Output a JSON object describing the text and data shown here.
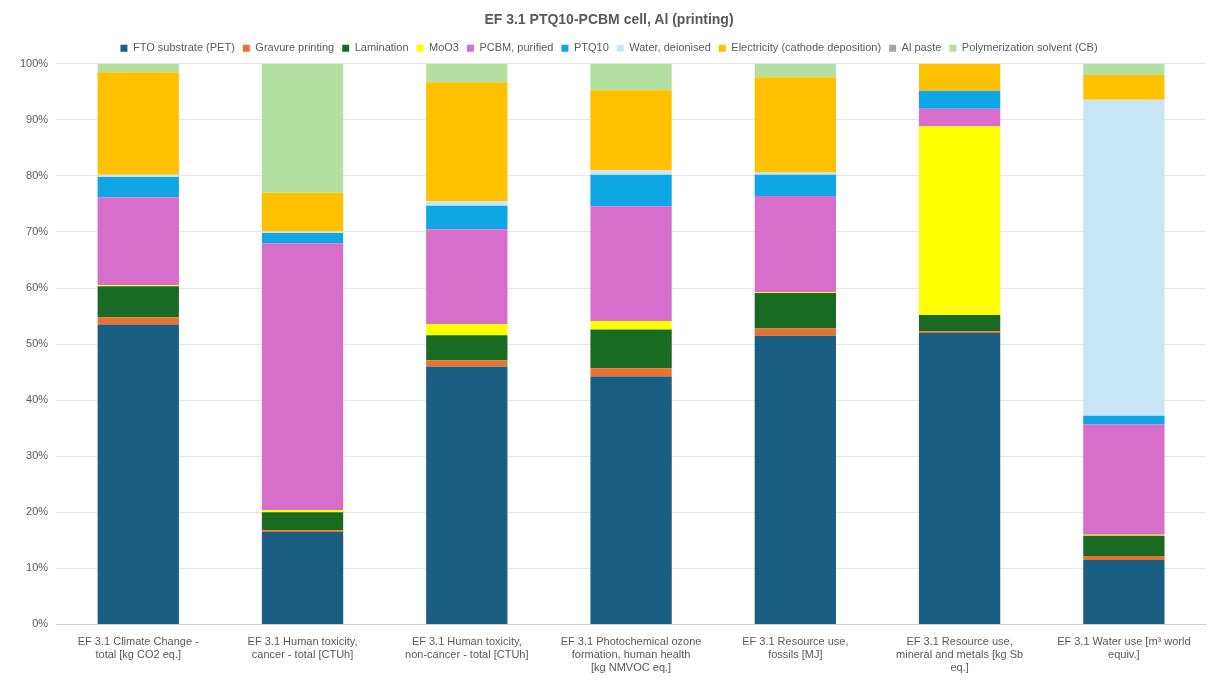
{
  "chart_data": {
    "type": "bar",
    "stacked": true,
    "title": "EF 3.1 PTQ10-PCBM cell, Al (printing)",
    "categories": [
      "EF 3.1 Climate Change - total [kg CO2 eq.]",
      "EF 3.1 Human toxicity, cancer - total [CTUh]",
      "EF 3.1 Human toxicity, non-cancer - total [CTUh]",
      "EF 3.1 Photochemical ozone formation, human health [kg NMVOC eq.]",
      "EF 3.1 Resource use, fossils [MJ]",
      "EF 3.1 Resource use, mineral and metals [kg Sb eq.]",
      "EF 3.1 Water use [m³ world equiv.]"
    ],
    "series": [
      {
        "name": "FTO substrate (PET)",
        "color": "#1a5e83",
        "values": [
          53.5,
          16.5,
          46.0,
          44.2,
          51.5,
          52.0,
          11.5
        ]
      },
      {
        "name": "Gravure printing",
        "color": "#e97132",
        "values": [
          1.3,
          0.3,
          1.1,
          1.5,
          1.3,
          0.3,
          0.7
        ]
      },
      {
        "name": "Lamination",
        "color": "#196b24",
        "values": [
          5.5,
          3.2,
          4.5,
          6.9,
          6.3,
          2.9,
          3.6
        ]
      },
      {
        "name": "MoO3",
        "color": "#ffff00",
        "values": [
          0.2,
          0.4,
          2.0,
          1.5,
          0.2,
          33.6,
          0.2
        ]
      },
      {
        "name": "PCBM, purified",
        "color": "#d86ecc",
        "values": [
          15.7,
          47.6,
          16.9,
          20.5,
          17.1,
          3.2,
          19.7
        ]
      },
      {
        "name": "PTQ10",
        "color": "#0fa6e6",
        "values": [
          3.6,
          1.8,
          4.2,
          5.6,
          3.8,
          3.2,
          1.5
        ]
      },
      {
        "name": "Water, deionised",
        "color": "#c8e5f5",
        "values": [
          0.4,
          0.3,
          0.8,
          0.8,
          0.4,
          null,
          56.4
        ]
      },
      {
        "name": "Electricity (cathode deposition)",
        "color": "#ffc000",
        "values": [
          18.3,
          6.9,
          21.2,
          14.3,
          17.0,
          4.8,
          4.4
        ]
      },
      {
        "name": "Al paste",
        "color": "#a6a6a6",
        "values": [
          null,
          0,
          0,
          0,
          0,
          null,
          0
        ]
      },
      {
        "name": "Polymerization solvent (CB)",
        "color": "#b3e0a0",
        "values": [
          1.5,
          23.0,
          3.3,
          4.7,
          2.4,
          0,
          2.0
        ]
      }
    ],
    "ylim": [
      0,
      100
    ],
    "yticks": [
      {
        "value": 0,
        "label": "0%"
      },
      {
        "value": 10,
        "label": "10%"
      },
      {
        "value": 20,
        "label": "20%"
      },
      {
        "value": 30,
        "label": "30%"
      },
      {
        "value": 40,
        "label": "40%"
      },
      {
        "value": 50,
        "label": "50%"
      },
      {
        "value": 60,
        "label": "60%"
      },
      {
        "value": 70,
        "label": "70%"
      },
      {
        "value": 80,
        "label": "80%"
      },
      {
        "value": 90,
        "label": "90%"
      },
      {
        "value": 100,
        "label": "100%"
      }
    ],
    "grid": "y",
    "legend": "top"
  }
}
